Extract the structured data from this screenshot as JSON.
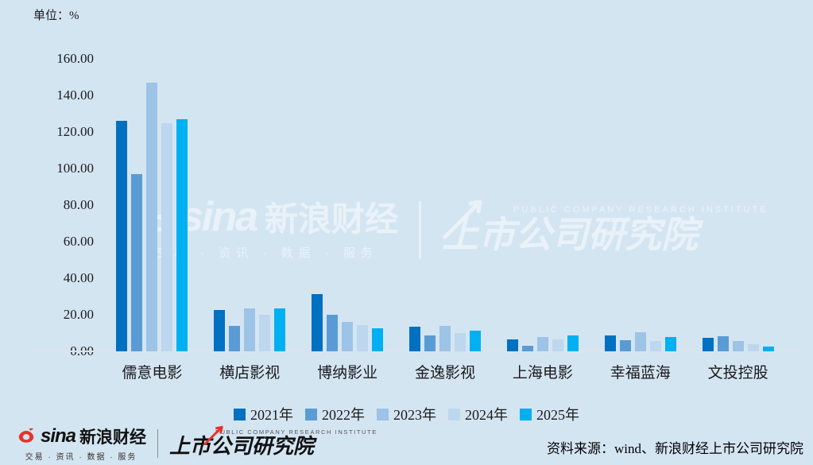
{
  "unit_label": "单位：%",
  "chart_data": {
    "type": "bar",
    "title": "",
    "unit": "%",
    "categories": [
      "儒意电影",
      "横店影视",
      "博纳影业",
      "金逸影视",
      "上海电影",
      "幸福蓝海",
      "文投控股"
    ],
    "series": [
      {
        "name": "2021年",
        "color": "#0070C0",
        "values": [
          126,
          22.7,
          31.5,
          13.6,
          6.7,
          8.5,
          7.2
        ]
      },
      {
        "name": "2022年",
        "color": "#5B9BD5",
        "values": [
          97,
          13.9,
          20.2,
          8.5,
          3.2,
          5.9,
          8.1
        ]
      },
      {
        "name": "2023年",
        "color": "#9DC3E6",
        "values": [
          147,
          23.7,
          16.3,
          13.9,
          7.7,
          10.4,
          5.7
        ]
      },
      {
        "name": "2024年",
        "color": "#BDD7EE",
        "values": [
          125,
          20.1,
          14.4,
          10,
          6.4,
          5.6,
          4
        ]
      },
      {
        "name": "2025年",
        "color": "#00B0F0",
        "values": [
          127,
          23.3,
          12.5,
          11.3,
          8.9,
          7.8,
          2.8
        ]
      }
    ],
    "ylim": [
      0,
      160
    ],
    "ytick_step": 20,
    "ytick_labels": [
      "0.00",
      "20.00",
      "40.00",
      "60.00",
      "80.00",
      "100.00",
      "120.00",
      "140.00",
      "160.00"
    ],
    "grid": false,
    "legend_position": "bottom"
  },
  "watermark": {
    "sina_word": "sina",
    "brand": "新浪财经",
    "tagline": "交易 · 资讯 · 数据 · 服务",
    "institute_en": "PUBLIC COMPANY RESEARCH INSTITUTE",
    "institute": "上市公司研究院"
  },
  "footer": {
    "sina_word": "sina",
    "brand": "新浪财经",
    "tagline": "交易 · 资讯 · 数据 · 服务",
    "institute_en": "PUBLIC COMPANY RESEARCH INSTITUTE",
    "institute": "上市公司研究院",
    "source": "资料来源：wind、新浪财经上市公司研究院"
  },
  "colors": {
    "background": "#D4E5F2",
    "axis_line": "#DDE3E9",
    "text": "#1A1A1A",
    "sina_red": "#E6332A"
  }
}
